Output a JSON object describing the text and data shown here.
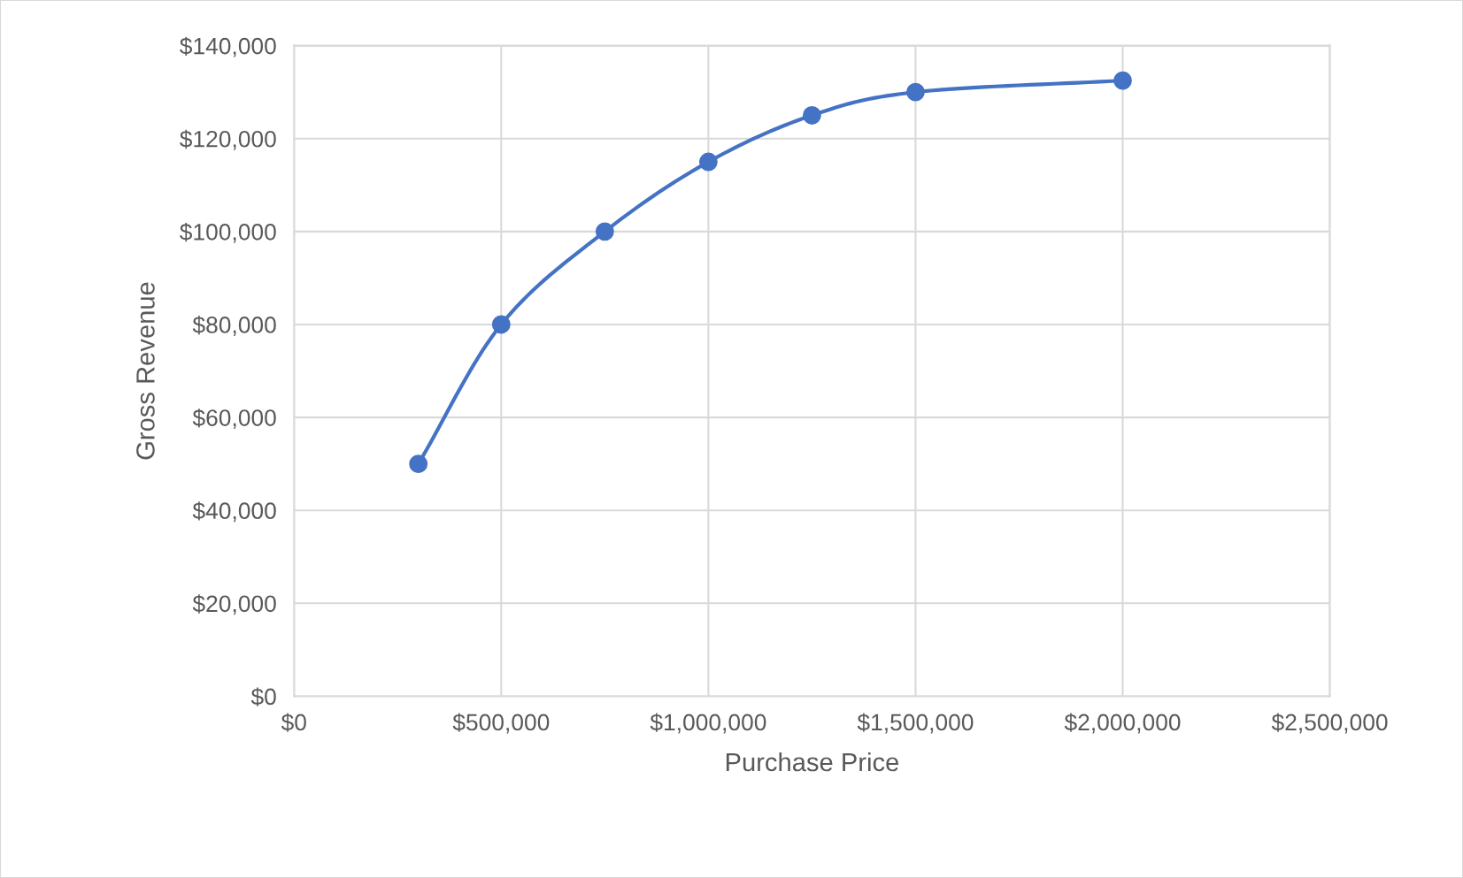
{
  "chart_data": {
    "type": "line",
    "xlabel": "Purchase Price",
    "ylabel": "Gross Revenue",
    "x": [
      300000,
      500000,
      750000,
      1000000,
      1250000,
      1500000,
      2000000
    ],
    "series": [
      {
        "color": "#4472c4",
        "values": [
          50000,
          80000,
          100000,
          115000,
          125000,
          130000,
          132500
        ]
      }
    ],
    "xlim": [
      0,
      2500000
    ],
    "xticks": [
      {
        "value": 0,
        "label": "$0"
      },
      {
        "value": 500000,
        "label": "$500,000"
      },
      {
        "value": 1000000,
        "label": "$1,000,000"
      },
      {
        "value": 1500000,
        "label": "$1,500,000"
      },
      {
        "value": 2000000,
        "label": "$2,000,000"
      },
      {
        "value": 2500000,
        "label": "$2,500,000"
      }
    ],
    "ylim": [
      0,
      140000
    ],
    "yticks": [
      {
        "value": 0,
        "label": "$0"
      },
      {
        "value": 20000,
        "label": "$20,000"
      },
      {
        "value": 40000,
        "label": "$40,000"
      },
      {
        "value": 60000,
        "label": "$60,000"
      },
      {
        "value": 80000,
        "label": "$80,000"
      },
      {
        "value": 100000,
        "label": "$100,000"
      },
      {
        "value": 120000,
        "label": "$120,000"
      },
      {
        "value": 140000,
        "label": "$140,000"
      }
    ],
    "grid": true,
    "marker": "circle",
    "line_style": "solid"
  }
}
